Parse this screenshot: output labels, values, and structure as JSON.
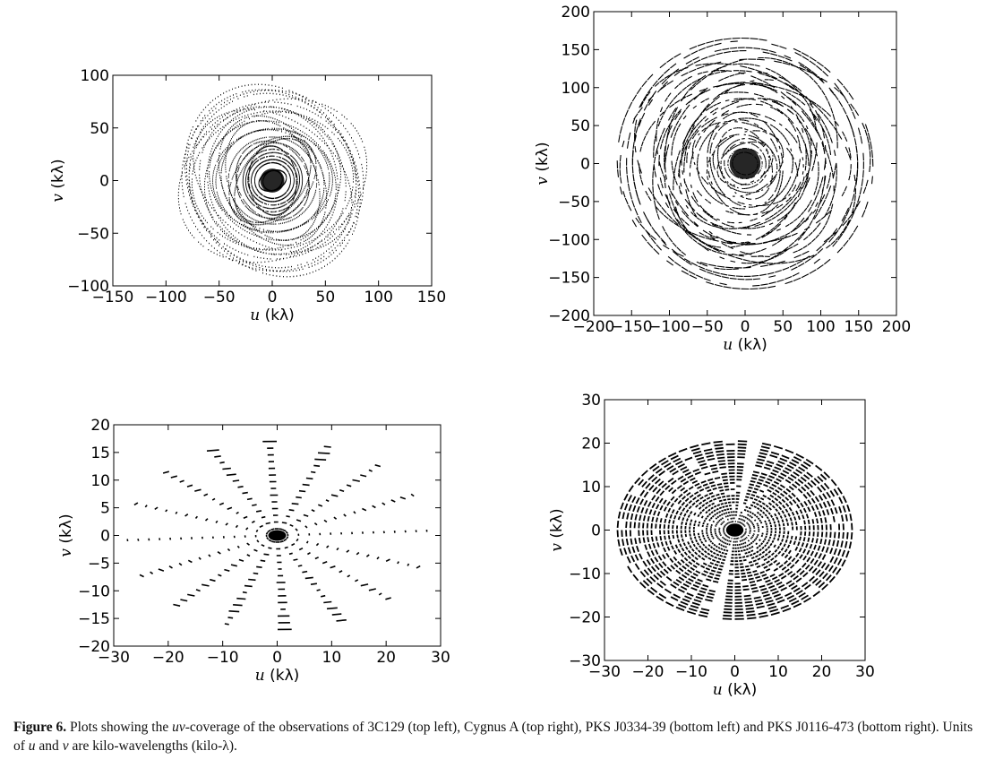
{
  "chart_data": [
    {
      "id": "top-left",
      "type": "scatter",
      "pattern": "elliptical-tracks-dots",
      "description_target": "3C129",
      "xlabel_var": "u",
      "xlabel_unit": " (kλ)",
      "ylabel_var": "v",
      "ylabel_unit": " (kλ)",
      "xlim": [
        -150,
        150
      ],
      "ylim": [
        -100,
        100
      ],
      "xticks": [
        -150,
        -100,
        -50,
        0,
        50,
        100,
        150
      ],
      "yticks": [
        -100,
        -50,
        0,
        50,
        100
      ],
      "extent": {
        "core_radius": 95,
        "lobe_radius": 100
      },
      "grid": false
    },
    {
      "id": "top-right",
      "type": "scatter",
      "pattern": "elliptical-tracks-dashes",
      "description_target": "Cygnus A",
      "xlabel_var": "u",
      "xlabel_unit": " (kλ)",
      "ylabel_var": "v",
      "ylabel_unit": " (kλ)",
      "xlim": [
        -200,
        200
      ],
      "ylim": [
        -200,
        200
      ],
      "xticks": [
        -200,
        -150,
        -100,
        -50,
        0,
        50,
        100,
        150,
        200
      ],
      "yticks": [
        -200,
        -150,
        -100,
        -50,
        0,
        50,
        100,
        150,
        200
      ],
      "extent": {
        "core_radius": 170,
        "lobe_radius": 180
      },
      "grid": false
    },
    {
      "id": "bottom-left",
      "type": "scatter",
      "pattern": "radial-snapshots",
      "description_target": "PKS J0334-39",
      "xlabel_var": "u",
      "xlabel_unit": " (kλ)",
      "ylabel_var": "v",
      "ylabel_unit": " (kλ)",
      "xlim": [
        -30,
        30
      ],
      "ylim": [
        -20,
        20
      ],
      "xticks": [
        -30,
        -20,
        -10,
        0,
        10,
        20,
        30
      ],
      "yticks": [
        -20,
        -15,
        -10,
        -5,
        0,
        5,
        10,
        15,
        20
      ],
      "extent": {
        "max_u": 27.5,
        "max_v": 17
      },
      "grid": false
    },
    {
      "id": "bottom-right",
      "type": "scatter",
      "pattern": "concentric-ellipses",
      "description_target": "PKS J0116-473",
      "xlabel_var": "u",
      "xlabel_unit": " (kλ)",
      "ylabel_var": "v",
      "ylabel_unit": " (kλ)",
      "xlim": [
        -30,
        30
      ],
      "ylim": [
        -30,
        30
      ],
      "xticks": [
        -30,
        -20,
        -10,
        0,
        10,
        20,
        30
      ],
      "yticks": [
        -30,
        -20,
        -10,
        0,
        10,
        20,
        30
      ],
      "extent": {
        "max_u": 27,
        "max_v": 20.5
      },
      "grid": false
    }
  ],
  "caption": {
    "label": "Figure 6.",
    "t1": " Plots showing the ",
    "uv": "uv",
    "t2": "-coverage of the observations of 3C129 (top left), Cygnus A (top right), PKS J0334-39 (bottom left) and PKS J0116-473 (bottom right). Units of ",
    "u": "u",
    "t3": " and ",
    "v": "v",
    "t4": " are kilo-wavelengths (kilo-λ)."
  }
}
